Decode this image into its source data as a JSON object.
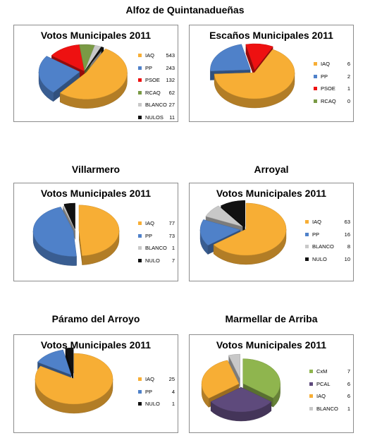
{
  "colors": {
    "IAQ": "#f7ae35",
    "PP": "#4f81c9",
    "PSOE": "#ee1111",
    "RCAQ": "#7a9a45",
    "BLANCO": "#c8c8c8",
    "NULOS": "#111111",
    "NULO": "#111111",
    "CxM": "#8fb54e",
    "PCAL": "#5e4a7c"
  },
  "chart_data": [
    {
      "type": "pie",
      "section": "Alfoz de Quintanadueñas",
      "title": "Votos Municipales 2011",
      "categories": [
        "IAQ",
        "PP",
        "PSOE",
        "RCAQ",
        "BLANCO",
        "NULOS"
      ],
      "values": [
        543,
        243,
        132,
        62,
        27,
        11
      ]
    },
    {
      "type": "pie",
      "section": "",
      "title": "Escaños Municipales 2011",
      "categories": [
        "IAQ",
        "PP",
        "PSOE",
        "RCAQ"
      ],
      "values": [
        6,
        2,
        1,
        0
      ]
    },
    {
      "type": "pie",
      "section": "Villarmero",
      "title": "Votos Municipales 2011",
      "categories": [
        "IAQ",
        "PP",
        "BLANCO",
        "NULO"
      ],
      "values": [
        77,
        73,
        1,
        7
      ]
    },
    {
      "type": "pie",
      "section": "Arroyal",
      "title": "Votos Municipales 2011",
      "categories": [
        "IAQ",
        "PP",
        "BLANCO",
        "NULO"
      ],
      "values": [
        63,
        16,
        8,
        10
      ]
    },
    {
      "type": "pie",
      "section": "Páramo del Arroyo",
      "title": "Votos Municipales 2011",
      "categories": [
        "IAQ",
        "PP",
        "NULO"
      ],
      "values": [
        25,
        4,
        1
      ]
    },
    {
      "type": "pie",
      "section": "Marmellar de Arriba",
      "title": "Votos Municipales 2011",
      "categories": [
        "CxM",
        "PCAL",
        "IAQ",
        "BLANCO"
      ],
      "values": [
        7,
        6,
        6,
        1
      ]
    }
  ]
}
